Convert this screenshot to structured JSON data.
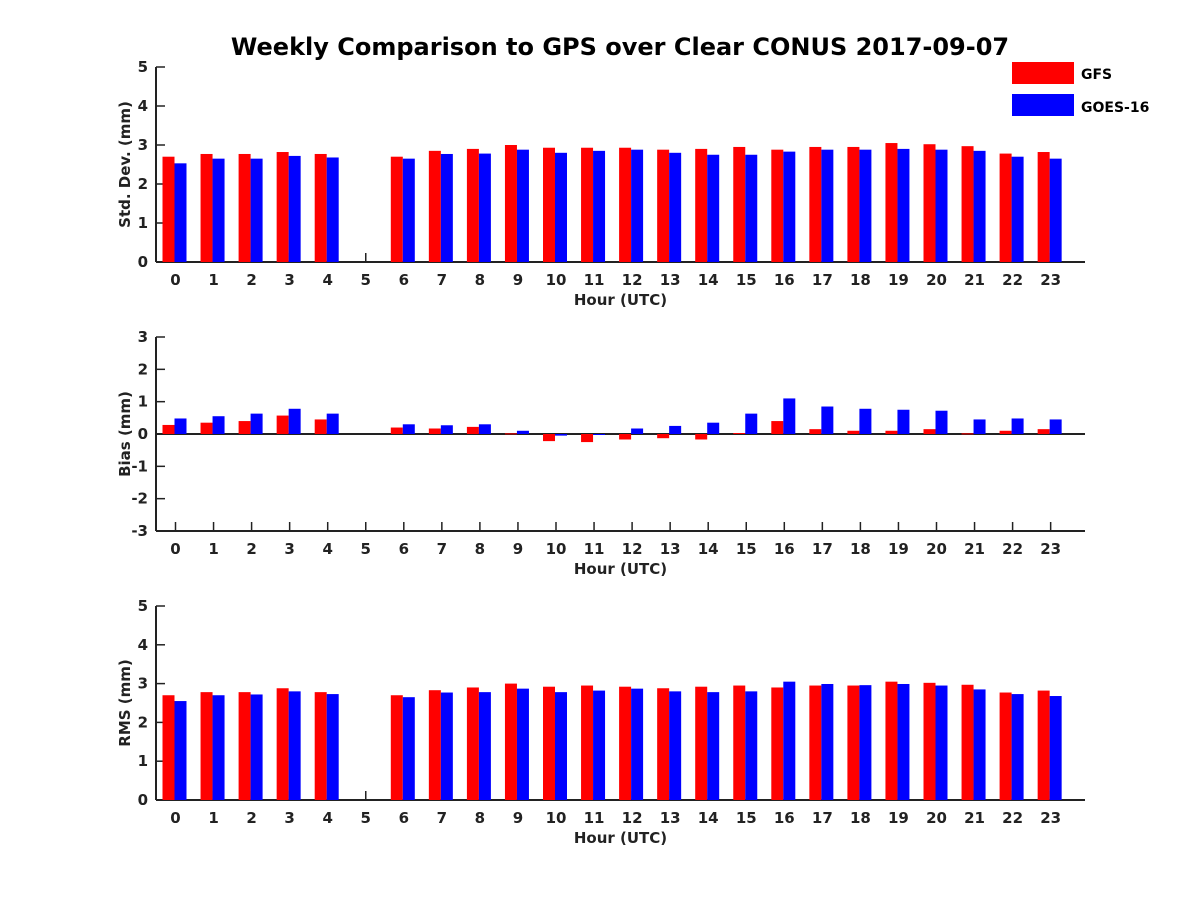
{
  "title": "Weekly Comparison to GPS over Clear CONUS 2017-09-07",
  "colors": {
    "GFS": "#ff0000",
    "GOES-16": "#0000ff",
    "axis": "#222222"
  },
  "legend": {
    "placement": "top-right",
    "entries": [
      {
        "name": "GFS",
        "color": "#ff0000"
      },
      {
        "name": "GOES-16",
        "color": "#0000ff"
      }
    ]
  },
  "chart_data": [
    {
      "type": "bar",
      "ylabel": "Std. Dev. (mm)",
      "xlabel": "Hour (UTC)",
      "ylim": [
        0,
        5
      ],
      "yticks": [
        0,
        1,
        2,
        3,
        4,
        5
      ],
      "categories": [
        "0",
        "1",
        "2",
        "3",
        "4",
        "5",
        "6",
        "7",
        "8",
        "9",
        "10",
        "11",
        "12",
        "13",
        "14",
        "15",
        "16",
        "17",
        "18",
        "19",
        "20",
        "21",
        "22",
        "23"
      ],
      "series": [
        {
          "name": "GFS",
          "values": [
            2.7,
            2.77,
            2.77,
            2.82,
            2.77,
            null,
            2.7,
            2.85,
            2.9,
            3.0,
            2.93,
            2.93,
            2.93,
            2.88,
            2.9,
            2.95,
            2.88,
            2.95,
            2.95,
            3.05,
            3.02,
            2.97,
            2.78,
            2.82
          ]
        },
        {
          "name": "GOES-16",
          "values": [
            2.53,
            2.65,
            2.65,
            2.72,
            2.68,
            null,
            2.65,
            2.77,
            2.78,
            2.88,
            2.8,
            2.85,
            2.88,
            2.8,
            2.75,
            2.75,
            2.83,
            2.88,
            2.88,
            2.9,
            2.88,
            2.85,
            2.7,
            2.65
          ]
        }
      ]
    },
    {
      "type": "bar",
      "ylabel": "Bias (mm)",
      "xlabel": "Hour (UTC)",
      "ylim": [
        -3,
        3
      ],
      "yticks": [
        -3,
        -2,
        -1,
        0,
        1,
        2,
        3
      ],
      "categories": [
        "0",
        "1",
        "2",
        "3",
        "4",
        "5",
        "6",
        "7",
        "8",
        "9",
        "10",
        "11",
        "12",
        "13",
        "14",
        "15",
        "16",
        "17",
        "18",
        "19",
        "20",
        "21",
        "22",
        "23"
      ],
      "series": [
        {
          "name": "GFS",
          "values": [
            0.28,
            0.35,
            0.4,
            0.57,
            0.45,
            null,
            0.2,
            0.17,
            0.22,
            0.02,
            -0.22,
            -0.25,
            -0.17,
            -0.13,
            -0.17,
            0.03,
            0.4,
            0.15,
            0.1,
            0.1,
            0.15,
            0.02,
            0.1,
            0.15
          ]
        },
        {
          "name": "GOES-16",
          "values": [
            0.48,
            0.55,
            0.63,
            0.78,
            0.63,
            null,
            0.3,
            0.27,
            0.3,
            0.1,
            -0.05,
            -0.02,
            0.17,
            0.25,
            0.35,
            0.63,
            1.1,
            0.85,
            0.78,
            0.75,
            0.72,
            0.45,
            0.48,
            0.45
          ]
        }
      ]
    },
    {
      "type": "bar",
      "ylabel": "RMS (mm)",
      "xlabel": "Hour (UTC)",
      "ylim": [
        0,
        5
      ],
      "yticks": [
        0,
        1,
        2,
        3,
        4,
        5
      ],
      "categories": [
        "0",
        "1",
        "2",
        "3",
        "4",
        "5",
        "6",
        "7",
        "8",
        "9",
        "10",
        "11",
        "12",
        "13",
        "14",
        "15",
        "16",
        "17",
        "18",
        "19",
        "20",
        "21",
        "22",
        "23"
      ],
      "series": [
        {
          "name": "GFS",
          "values": [
            2.7,
            2.78,
            2.78,
            2.88,
            2.78,
            null,
            2.7,
            2.83,
            2.9,
            3.0,
            2.92,
            2.95,
            2.92,
            2.88,
            2.92,
            2.95,
            2.9,
            2.95,
            2.95,
            3.05,
            3.02,
            2.97,
            2.77,
            2.82
          ]
        },
        {
          "name": "GOES-16",
          "values": [
            2.55,
            2.7,
            2.72,
            2.8,
            2.73,
            null,
            2.65,
            2.77,
            2.78,
            2.87,
            2.78,
            2.82,
            2.87,
            2.8,
            2.78,
            2.8,
            3.05,
            2.99,
            2.96,
            2.99,
            2.95,
            2.85,
            2.73,
            2.68
          ]
        }
      ]
    }
  ]
}
